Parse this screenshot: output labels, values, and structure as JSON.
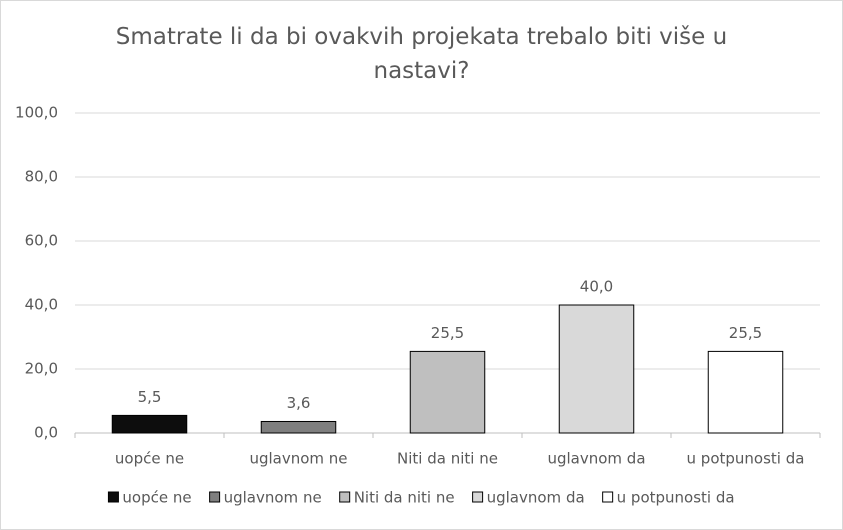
{
  "chart_data": {
    "type": "bar",
    "title": "Smatrate li da bi ovakvih projekata trebalo biti više u nastavi?",
    "categories": [
      "uopće ne",
      "uglavnom ne",
      "Niti da niti ne",
      "uglavnom da",
      "u potpunosti da"
    ],
    "values": [
      5.5,
      3.6,
      25.5,
      40.0,
      25.5
    ],
    "value_labels": [
      "5,5",
      "3,6",
      "25,5",
      "40,0",
      "25,5"
    ],
    "colors": [
      "#0d0d0d",
      "#7f7f7f",
      "#bfbfbf",
      "#d9d9d9",
      "#ffffff"
    ],
    "ylim": [
      0,
      100
    ],
    "yticks": [
      {
        "value": 0,
        "label": "0,0"
      },
      {
        "value": 20,
        "label": "20,0"
      },
      {
        "value": 40,
        "label": "40,0"
      },
      {
        "value": 60,
        "label": "60,0"
      },
      {
        "value": 80,
        "label": "80,0"
      },
      {
        "value": 100,
        "label": "100,0"
      }
    ],
    "grid": true,
    "legend": "bottom"
  }
}
